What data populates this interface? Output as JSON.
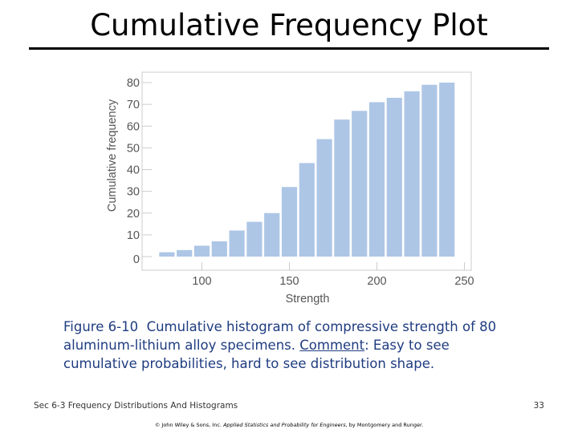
{
  "slide": {
    "title": "Cumulative Frequency Plot",
    "caption": {
      "figure": "Figure 6-10",
      "text1": "Cumulative histogram of compressive strength of 80 aluminum-lithium alloy specimens. ",
      "comment": "Comment",
      "text2": ": Easy to see cumulative probabilities, hard to see distribution shape."
    },
    "footer_left": "Sec 6-3 Frequency Distributions And Histograms",
    "page_number": "33",
    "copyright_pre": "© John Wiley & Sons, Inc.",
    "copyright_book": "Applied Statistics and Probability for Engineers",
    "copyright_post": ", by Montgomery and Runger."
  },
  "colors": {
    "bar": "#aec6e6",
    "axis": "#cccccc",
    "caption": "#1f3c80"
  },
  "chart_data": {
    "type": "bar",
    "title": "",
    "xlabel": "Strength",
    "ylabel": "Cumulative frequency",
    "xlim": [
      70,
      250
    ],
    "ylim": [
      0,
      80
    ],
    "xticks": [
      100,
      150,
      200,
      250
    ],
    "yticks": [
      0,
      10,
      20,
      30,
      40,
      50,
      60,
      70,
      80
    ],
    "bin_width": 10,
    "bins": [
      {
        "x0": 75,
        "x1": 85,
        "value": 2
      },
      {
        "x0": 85,
        "x1": 95,
        "value": 3
      },
      {
        "x0": 95,
        "x1": 105,
        "value": 5
      },
      {
        "x0": 105,
        "x1": 115,
        "value": 7
      },
      {
        "x0": 115,
        "x1": 125,
        "value": 12
      },
      {
        "x0": 125,
        "x1": 135,
        "value": 16
      },
      {
        "x0": 135,
        "x1": 145,
        "value": 20
      },
      {
        "x0": 145,
        "x1": 155,
        "value": 32
      },
      {
        "x0": 155,
        "x1": 165,
        "value": 43
      },
      {
        "x0": 165,
        "x1": 175,
        "value": 54
      },
      {
        "x0": 175,
        "x1": 185,
        "value": 63
      },
      {
        "x0": 185,
        "x1": 195,
        "value": 67
      },
      {
        "x0": 195,
        "x1": 205,
        "value": 71
      },
      {
        "x0": 205,
        "x1": 215,
        "value": 73
      },
      {
        "x0": 215,
        "x1": 225,
        "value": 76
      },
      {
        "x0": 225,
        "x1": 235,
        "value": 79
      },
      {
        "x0": 235,
        "x1": 245,
        "value": 80
      }
    ],
    "grid": false,
    "legend": "none"
  }
}
